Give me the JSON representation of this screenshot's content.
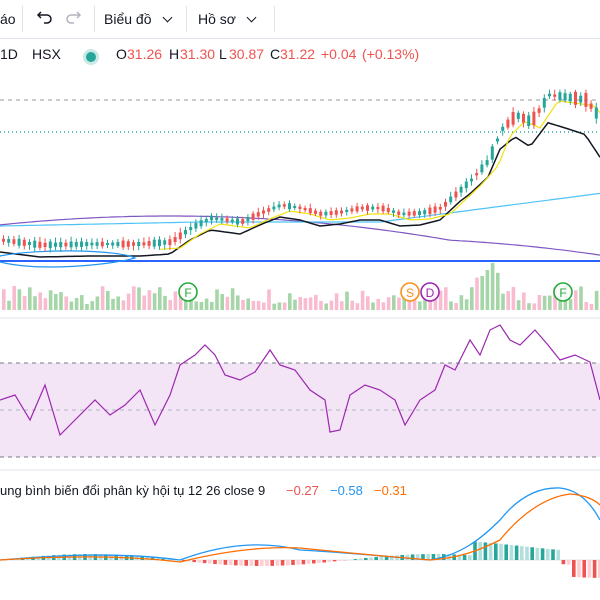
{
  "toolbar": {
    "alerts_partial": "áo",
    "chart_menu": "Biểu đồ",
    "profile_menu": "Hồ sơ",
    "undo_icon": "undo-icon",
    "redo_icon": "redo-icon"
  },
  "legend": {
    "interval": "1D",
    "exchange": "HSX",
    "open_key": "O",
    "open_val": "31.26",
    "high_key": "H",
    "high_val": "31.30",
    "low_key": "L",
    "low_val": "30.87",
    "close_key": "C",
    "close_val": "31.22",
    "change": "+0.04",
    "change_pct": "(+0.13%)",
    "status_color": "#26a69a"
  },
  "events": [
    {
      "label": "F",
      "color": "#22ab3c"
    },
    {
      "label": "S",
      "color": "#f7931a"
    },
    {
      "label": "D",
      "color": "#9c27b0"
    },
    {
      "label": "F",
      "color": "#22ab3c"
    }
  ],
  "macd": {
    "title": "ung bình biến đổi phân kỳ hội tụ 12 26 close 9",
    "value1": "−0.27",
    "value2": "−0.58",
    "value3": "−0.31",
    "color1": "#ef5350",
    "color2": "#2196f3",
    "color3": "#ff6d00"
  },
  "colors": {
    "up": "#26a69a",
    "down": "#ef5350",
    "rsi_line": "#9c27b0",
    "rsi_band": "#f3e5f5",
    "ema_short": "#f2e20f",
    "ema_long": "#131722",
    "ema_cyan": "#4fc3f7",
    "ema_purple": "#7e57c2",
    "baseline": "#2962ff"
  }
}
